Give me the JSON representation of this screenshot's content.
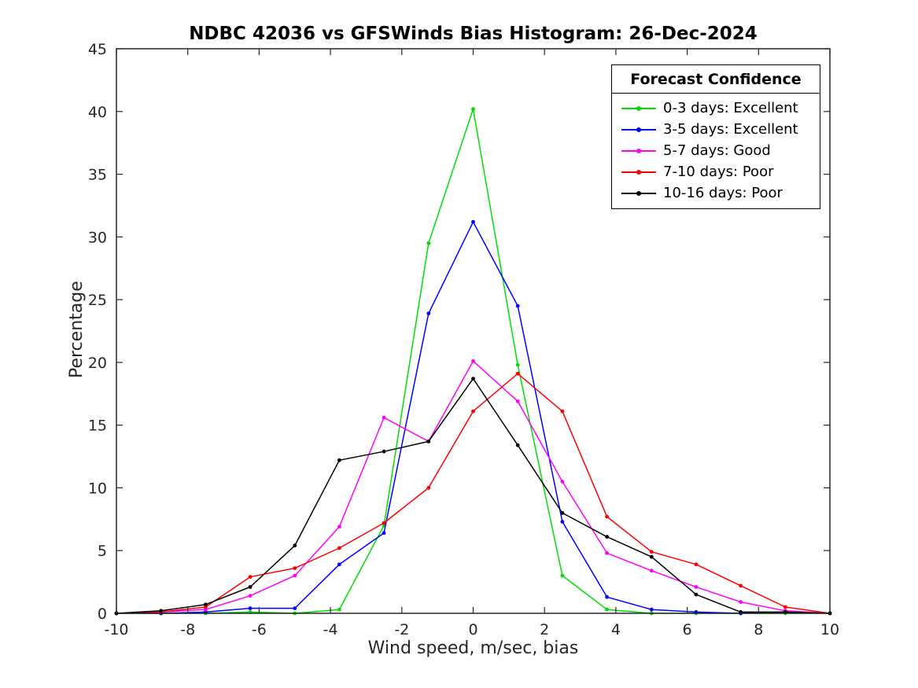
{
  "chart_data": {
    "type": "line",
    "title": "NDBC 42036 vs GFSWinds Bias Histogram: 26-Dec-2024",
    "xlabel": "Wind speed, m/sec, bias",
    "ylabel": "Percentage",
    "xlim": [
      -10,
      10
    ],
    "ylim": [
      0,
      45
    ],
    "xticks": [
      -10,
      -8,
      -6,
      -4,
      -2,
      0,
      2,
      4,
      6,
      8,
      10
    ],
    "yticks": [
      0,
      5,
      10,
      15,
      20,
      25,
      30,
      35,
      40,
      45
    ],
    "grid": false,
    "marker": "dot",
    "legend_title": "Forecast Confidence",
    "legend_position": "top-right",
    "x": [
      -10,
      -8.75,
      -7.5,
      -6.25,
      -5,
      -3.75,
      -2.5,
      -1.25,
      0,
      1.25,
      2.5,
      3.75,
      5,
      6.25,
      7.5,
      8.75,
      10
    ],
    "series": [
      {
        "name": "0-3 days: Excellent",
        "color": "#00dd00",
        "values": [
          0,
          0,
          0,
          0.1,
          0,
          0.3,
          7.0,
          29.5,
          40.2,
          19.8,
          3.0,
          0.3,
          0,
          0,
          0,
          0,
          0
        ]
      },
      {
        "name": "3-5 days: Excellent",
        "color": "#0000ff",
        "values": [
          0,
          0,
          0.1,
          0.4,
          0.4,
          3.9,
          6.4,
          23.9,
          31.2,
          24.5,
          7.3,
          1.3,
          0.3,
          0.1,
          0,
          0.1,
          0
        ]
      },
      {
        "name": "5-7 days: Good",
        "color": "#ff00ff",
        "values": [
          0,
          0.1,
          0.3,
          1.4,
          3.0,
          6.9,
          15.6,
          13.7,
          20.1,
          16.9,
          10.5,
          4.8,
          3.4,
          2.1,
          0.9,
          0.2,
          0
        ]
      },
      {
        "name": "7-10 days: Poor",
        "color": "#ff0000",
        "values": [
          0,
          0.1,
          0.5,
          2.9,
          3.6,
          5.2,
          7.2,
          10.0,
          16.1,
          19.1,
          16.1,
          7.7,
          4.9,
          3.9,
          2.2,
          0.5,
          0
        ]
      },
      {
        "name": "10-16 days: Poor",
        "color": "#000000",
        "values": [
          0,
          0.2,
          0.7,
          2.1,
          5.4,
          12.2,
          12.9,
          13.7,
          18.7,
          13.4,
          8.0,
          6.1,
          4.5,
          1.5,
          0.1,
          0.1,
          0
        ]
      }
    ]
  }
}
